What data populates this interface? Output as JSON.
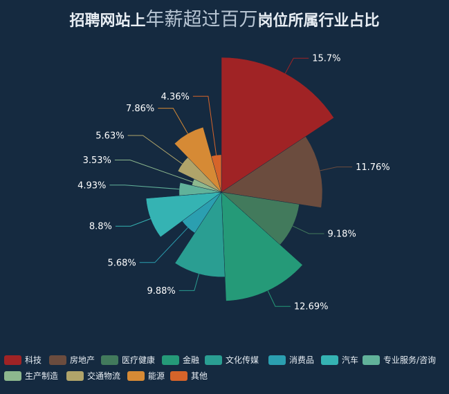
{
  "title": {
    "part1": "招聘网站上",
    "part2": "年薪超过百万",
    "part3": "岗位所属行业占比"
  },
  "chart_data": {
    "type": "pie",
    "variant": "rose",
    "categories": [
      "科技",
      "房地产",
      "医疗健康",
      "金融",
      "文化传媒",
      "消费品",
      "汽车",
      "专业服务/咨询",
      "生产制造",
      "交通物流",
      "能源",
      "其他"
    ],
    "values": [
      15.7,
      11.76,
      9.18,
      12.69,
      9.88,
      5.68,
      8.8,
      4.93,
      3.53,
      5.63,
      7.86,
      4.36
    ],
    "labels": [
      "15.7%",
      "11.76%",
      "9.18%",
      "12.69%",
      "9.88%",
      "5.68%",
      "8.8%",
      "4.93%",
      "3.53%",
      "5.63%",
      "7.86%",
      "4.36%"
    ],
    "colors": [
      "#a02325",
      "#6b4c3e",
      "#427a5c",
      "#259a78",
      "#2a9e92",
      "#2b9fb0",
      "#35b3b3",
      "#61b29a",
      "#8db88e",
      "#b0a46a",
      "#d68a35",
      "#d6642a"
    ],
    "legend_position": "bottom"
  }
}
